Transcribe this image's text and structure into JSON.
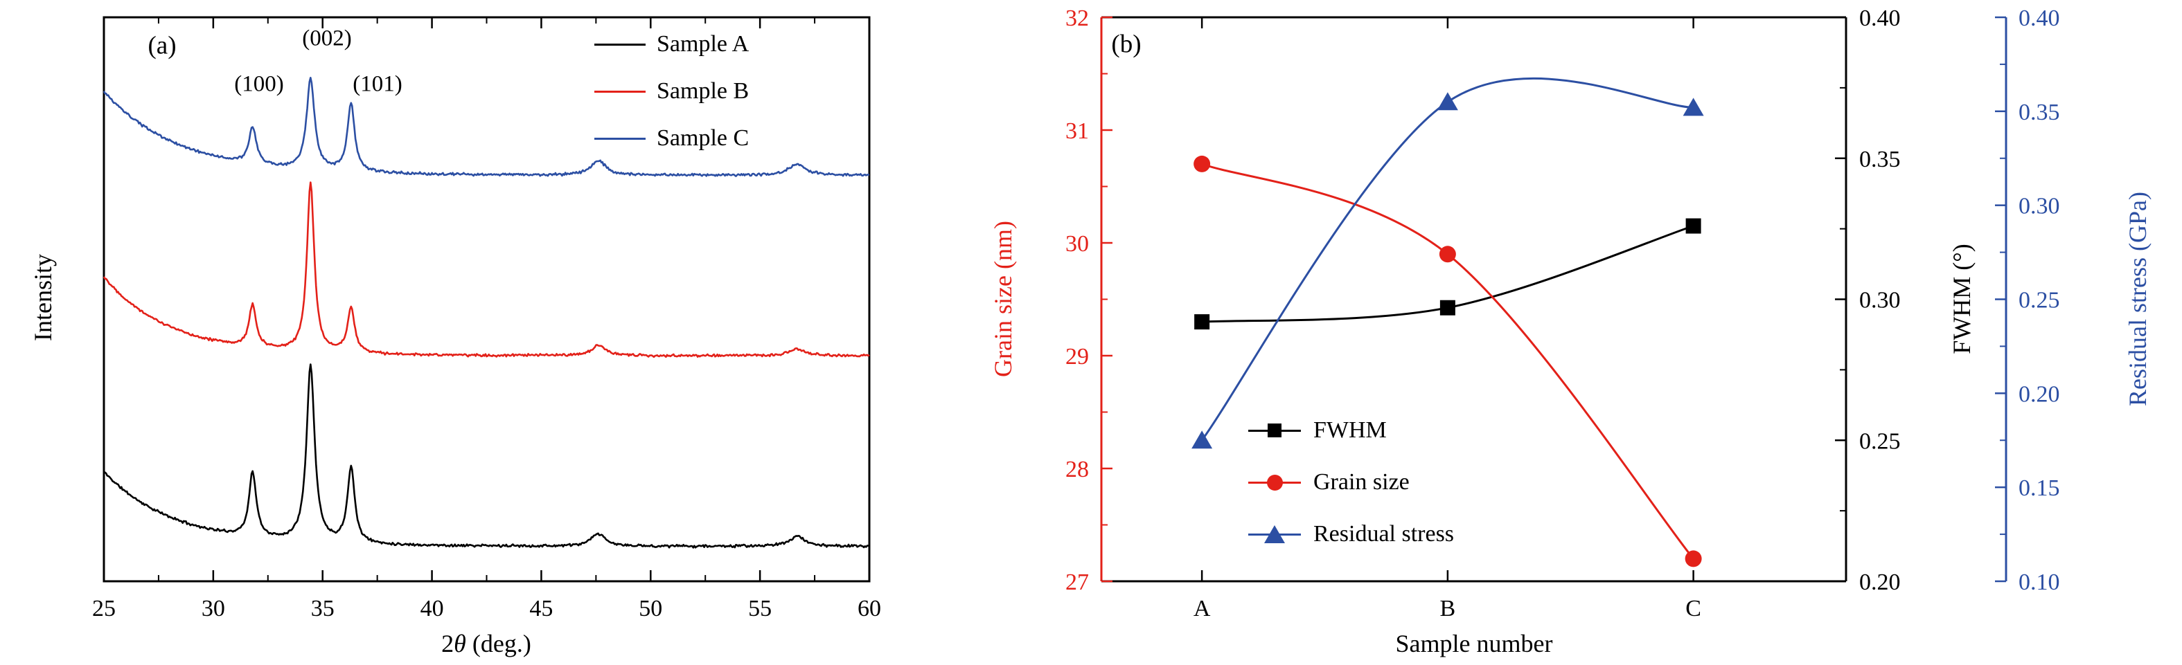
{
  "chart_data": [
    {
      "type": "line",
      "panel_label": "(a)",
      "xlabel": {
        "pre": "2",
        "sym": "θ",
        "post": " (deg.)"
      },
      "ylabel": "Intensity",
      "xlim": [
        25,
        60
      ],
      "xticks": [
        25,
        30,
        35,
        40,
        45,
        50,
        55,
        60
      ],
      "x_minor_step": 2.5,
      "grid": false,
      "legend_position": "top-right-inside",
      "annotations": [
        {
          "label": "(100)",
          "x": 32.1,
          "level": "low"
        },
        {
          "label": "(002)",
          "x": 35.2,
          "level": "high"
        },
        {
          "label": "(101)",
          "x": 37.5,
          "level": "low"
        }
      ],
      "legend": [
        {
          "label": "Sample A",
          "color": "#000000"
        },
        {
          "label": "Sample B",
          "color": "#e32119"
        },
        {
          "label": "Sample C",
          "color": "#2c4fa3"
        }
      ],
      "series": [
        {
          "name": "Sample A",
          "color": "#000000",
          "offset": 0.062,
          "bg_amp": 0.132,
          "bg_decay": 3.2,
          "noise": 0.0028,
          "seed": 11,
          "peaks": [
            {
              "two_theta": 31.8,
              "height": 0.115,
              "width": 0.2
            },
            {
              "two_theta": 34.45,
              "height": 0.315,
              "width": 0.22
            },
            {
              "two_theta": 36.3,
              "height": 0.135,
              "width": 0.2
            },
            {
              "two_theta": 47.6,
              "height": 0.022,
              "width": 0.38
            },
            {
              "two_theta": 56.7,
              "height": 0.018,
              "width": 0.42
            }
          ]
        },
        {
          "name": "Sample B",
          "color": "#e32119",
          "offset": 0.4,
          "bg_amp": 0.14,
          "bg_decay": 3.0,
          "noise": 0.0028,
          "seed": 22,
          "peaks": [
            {
              "two_theta": 31.8,
              "height": 0.075,
              "width": 0.2
            },
            {
              "two_theta": 34.45,
              "height": 0.3,
              "width": 0.2
            },
            {
              "two_theta": 36.3,
              "height": 0.08,
              "width": 0.2
            },
            {
              "two_theta": 47.6,
              "height": 0.018,
              "width": 0.38
            },
            {
              "two_theta": 56.7,
              "height": 0.012,
              "width": 0.42
            }
          ]
        },
        {
          "name": "Sample C",
          "color": "#2c4fa3",
          "offset": 0.72,
          "bg_amp": 0.148,
          "bg_decay": 3.4,
          "noise": 0.0028,
          "seed": 33,
          "peaks": [
            {
              "two_theta": 31.8,
              "height": 0.065,
              "width": 0.2
            },
            {
              "two_theta": 34.45,
              "height": 0.16,
              "width": 0.22
            },
            {
              "two_theta": 36.3,
              "height": 0.12,
              "width": 0.2
            },
            {
              "two_theta": 47.6,
              "height": 0.026,
              "width": 0.4
            },
            {
              "two_theta": 56.7,
              "height": 0.02,
              "width": 0.45
            }
          ]
        }
      ]
    },
    {
      "type": "line-scatter-multiaxis",
      "panel_label": "(b)",
      "xlabel": "Sample number",
      "categories": [
        "A",
        "B",
        "C"
      ],
      "grid": false,
      "legend_position": "center-left-inside",
      "axes": {
        "grain": {
          "label": "Grain size (nm)",
          "color": "#e32119",
          "side": "left",
          "min": 27,
          "max": 32,
          "ticks": [
            27,
            28,
            29,
            30,
            31,
            32
          ],
          "minor_step": 0.5
        },
        "fwhm": {
          "label": "FWHM (°)",
          "color": "#000000",
          "side": "right",
          "min": 0.2,
          "max": 0.4,
          "ticks": [
            "0.20",
            "0.25",
            "0.30",
            "0.35",
            "0.40"
          ],
          "minor_step": 0.025
        },
        "stress": {
          "label": "Residual stress (GPa)",
          "color": "#2c4fa3",
          "side": "far-right",
          "min": 0.1,
          "max": 0.4,
          "ticks": [
            "0.10",
            "0.15",
            "0.20",
            "0.25",
            "0.30",
            "0.35",
            "0.40"
          ],
          "minor_step": 0.025
        }
      },
      "series": [
        {
          "name": "FWHM",
          "axis": "fwhm",
          "marker": "square",
          "color": "#000000",
          "values": [
            0.292,
            0.297,
            0.326
          ]
        },
        {
          "name": "Grain size",
          "axis": "grain",
          "marker": "circle",
          "color": "#e32119",
          "values": [
            30.7,
            29.9,
            27.2
          ]
        },
        {
          "name": "Residual stress",
          "axis": "stress",
          "marker": "triangle",
          "color": "#2c4fa3",
          "values": [
            0.175,
            0.355,
            0.352
          ]
        }
      ],
      "legend": [
        {
          "label": "FWHM",
          "marker": "square",
          "color": "#000000"
        },
        {
          "label": "Grain size",
          "marker": "circle",
          "color": "#e32119"
        },
        {
          "label": "Residual stress",
          "marker": "triangle",
          "color": "#2c4fa3"
        }
      ]
    }
  ]
}
